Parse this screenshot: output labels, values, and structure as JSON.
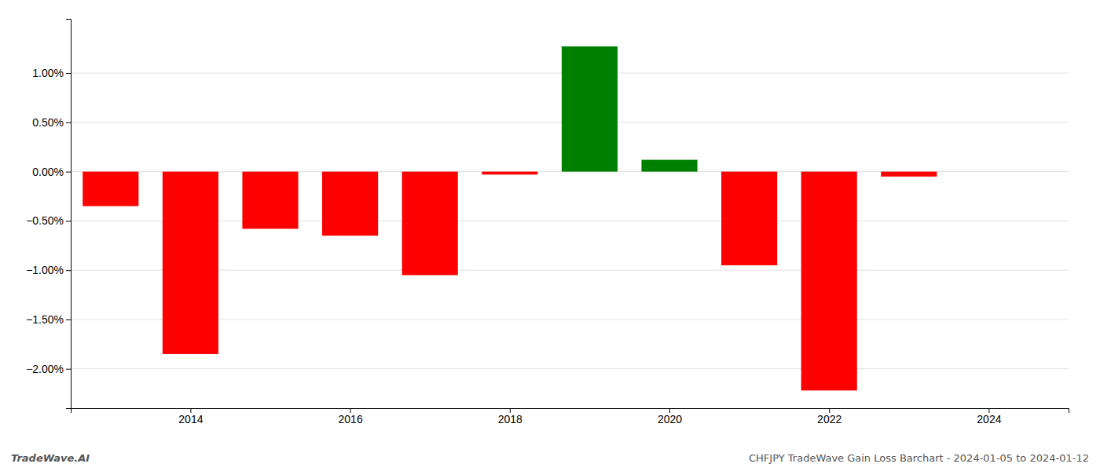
{
  "chart_data": {
    "type": "bar",
    "x": [
      2013,
      2014,
      2015,
      2016,
      2017,
      2018,
      2019,
      2020,
      2021,
      2022,
      2023,
      2024
    ],
    "values": [
      -0.35,
      -1.85,
      -0.58,
      -0.65,
      -1.05,
      -0.03,
      1.27,
      0.12,
      -0.95,
      -2.22,
      -0.05,
      0.0
    ],
    "colors": [
      "#ff0000",
      "#ff0000",
      "#ff0000",
      "#ff0000",
      "#ff0000",
      "#ff0000",
      "#008000",
      "#008000",
      "#ff0000",
      "#ff0000",
      "#ff0000",
      "#ff0000"
    ],
    "xlim": [
      2012.5,
      2025.0
    ],
    "xticks": [
      2014,
      2016,
      2018,
      2020,
      2022,
      2024
    ],
    "ylim": [
      -2.4,
      1.55
    ],
    "yticks": [
      {
        "value": -2.0,
        "label": "−2.00%"
      },
      {
        "value": -1.5,
        "label": "−1.50%"
      },
      {
        "value": -1.0,
        "label": "−1.00%"
      },
      {
        "value": -0.5,
        "label": "−0.50%"
      },
      {
        "value": 0.0,
        "label": "0.00%"
      },
      {
        "value": 0.5,
        "label": "0.50%"
      },
      {
        "value": 1.0,
        "label": "1.00%"
      }
    ],
    "grid": true,
    "annotations": [
      "TradeWave.AI",
      "CHFJPY TradeWave Gain Loss Barchart - 2024-01-05 to 2024-01-12"
    ]
  }
}
